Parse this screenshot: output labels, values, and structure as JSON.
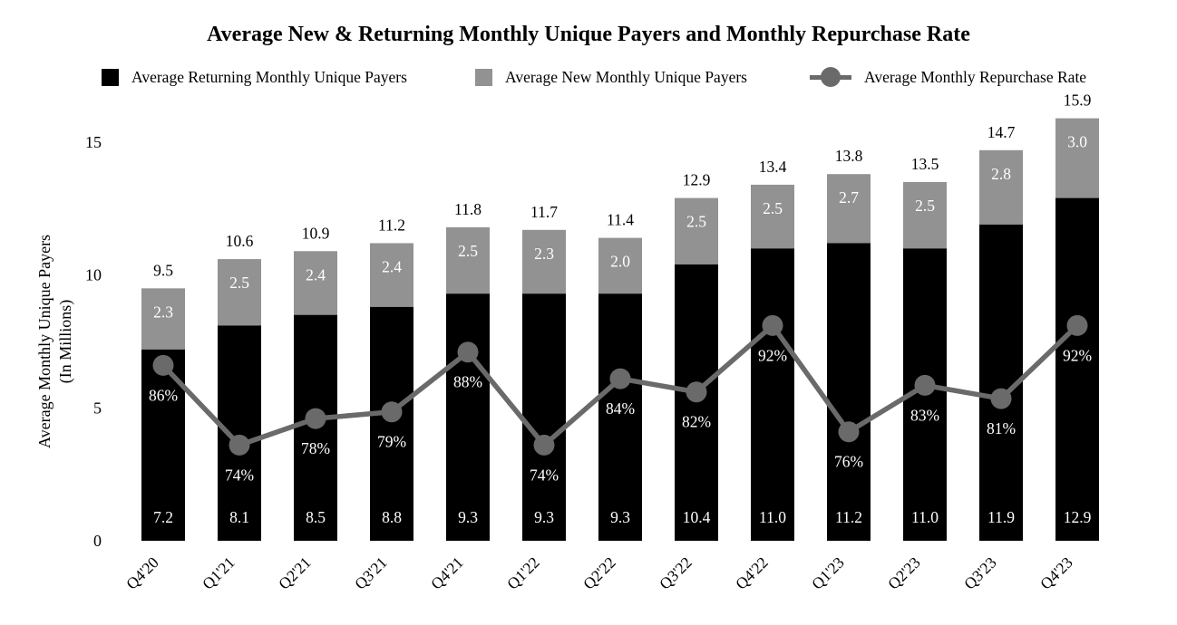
{
  "title": "Average New & Returning Monthly Unique Payers and Monthly Repurchase Rate",
  "legend": {
    "returning_label": "Average Returning Monthly Unique Payers",
    "new_label": "Average New Monthly Unique Payers",
    "rate_label": "Average Monthly Repurchase Rate"
  },
  "colors": {
    "returning": "#000000",
    "new": "#929292",
    "rate_line": "#6a6a6a",
    "bar_label_text": "#ffffff",
    "text": "#000000",
    "background": "#ffffff"
  },
  "chart_data": {
    "type": "bar",
    "subtype": "stacked-bars-with-line-overlay",
    "title": "Average New & Returning Monthly Unique Payers and Monthly Repurchase Rate",
    "categories": [
      "Q4'20",
      "Q1'21",
      "Q2'21",
      "Q3'21",
      "Q4'21",
      "Q1'22",
      "Q2'22",
      "Q3'22",
      "Q4'22",
      "Q1'23",
      "Q2'23",
      "Q3'23",
      "Q4'23"
    ],
    "series": [
      {
        "name": "Average Returning Monthly Unique Payers",
        "type": "bar-stack-bottom",
        "values": [
          7.2,
          8.1,
          8.5,
          8.8,
          9.3,
          9.3,
          9.3,
          10.4,
          11.0,
          11.2,
          11.0,
          11.9,
          12.9
        ]
      },
      {
        "name": "Average New Monthly Unique Payers",
        "type": "bar-stack-top",
        "values": [
          2.3,
          2.5,
          2.4,
          2.4,
          2.5,
          2.3,
          2.0,
          2.5,
          2.5,
          2.7,
          2.5,
          2.8,
          3.0
        ]
      },
      {
        "name": "Average Monthly Repurchase Rate",
        "type": "line",
        "unit": "%",
        "values": [
          86,
          74,
          78,
          79,
          88,
          74,
          84,
          82,
          92,
          76,
          83,
          81,
          92
        ]
      }
    ],
    "stack_totals": [
      9.5,
      10.6,
      10.9,
      11.2,
      11.8,
      11.7,
      11.4,
      12.9,
      13.4,
      13.8,
      13.5,
      14.7,
      15.9
    ],
    "xlabel": "",
    "ylabel_line1": "Average Monthly Unique Payers",
    "ylabel_line2": "(In Millions)",
    "ylim": [
      0,
      15
    ],
    "yticks": [
      0,
      5,
      10,
      15
    ],
    "rate_line_hidden_axis_mapping": {
      "units_per_percent": 0.25,
      "intercept_units": -14.9
    },
    "legend_position": "top",
    "grid": false
  }
}
